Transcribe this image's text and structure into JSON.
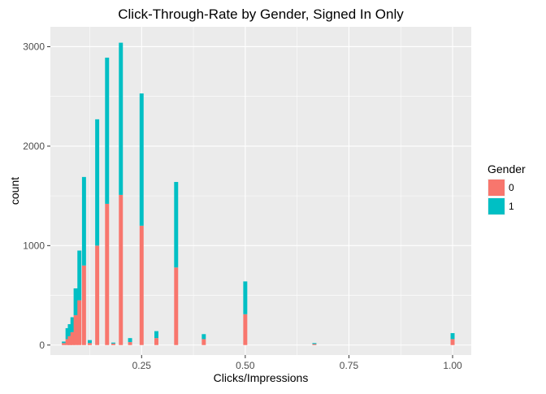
{
  "chart_data": {
    "type": "bar",
    "stacked": true,
    "title": "Click-Through-Rate by Gender, Signed In Only",
    "xlabel": "Clicks/Impressions",
    "ylabel": "count",
    "xlim": [
      0.03,
      1.045
    ],
    "ylim": [
      -100,
      3200
    ],
    "x_ticks": [
      {
        "value": 0.25,
        "label": "0.25"
      },
      {
        "value": 0.5,
        "label": "0.50"
      },
      {
        "value": 0.75,
        "label": "0.75"
      },
      {
        "value": 1.0,
        "label": "1.00"
      }
    ],
    "y_ticks": [
      {
        "value": 0,
        "label": "0"
      },
      {
        "value": 1000,
        "label": "1000"
      },
      {
        "value": 2000,
        "label": "2000"
      },
      {
        "value": 3000,
        "label": "3000"
      }
    ],
    "grid": true,
    "legend": {
      "title": "Gender",
      "position": "right",
      "entries": [
        {
          "label": "0",
          "color": "#F8766D"
        },
        {
          "label": "1",
          "color": "#00BFC4"
        }
      ]
    },
    "colors": {
      "panel": "#EBEBEB",
      "grid": "#FFFFFF",
      "series0": "#F8766D",
      "series1": "#00BFC4"
    },
    "bin_width": 0.0097,
    "x": [
      0.0625,
      0.0714,
      0.0769,
      0.0833,
      0.0909,
      0.1,
      0.1111,
      0.125,
      0.1429,
      0.1667,
      0.1818,
      0.2,
      0.2222,
      0.25,
      0.2857,
      0.3333,
      0.4,
      0.5,
      0.6667,
      1.0
    ],
    "series": [
      {
        "name": "0",
        "values": [
          20,
          60,
          90,
          130,
          300,
          450,
          800,
          20,
          1000,
          1420,
          15,
          1510,
          30,
          1200,
          70,
          780,
          60,
          310,
          10,
          60
        ]
      },
      {
        "name": "1",
        "values": [
          15,
          110,
          120,
          150,
          270,
          500,
          890,
          30,
          1270,
          1470,
          10,
          1530,
          40,
          1330,
          70,
          860,
          50,
          330,
          10,
          60
        ]
      }
    ]
  }
}
